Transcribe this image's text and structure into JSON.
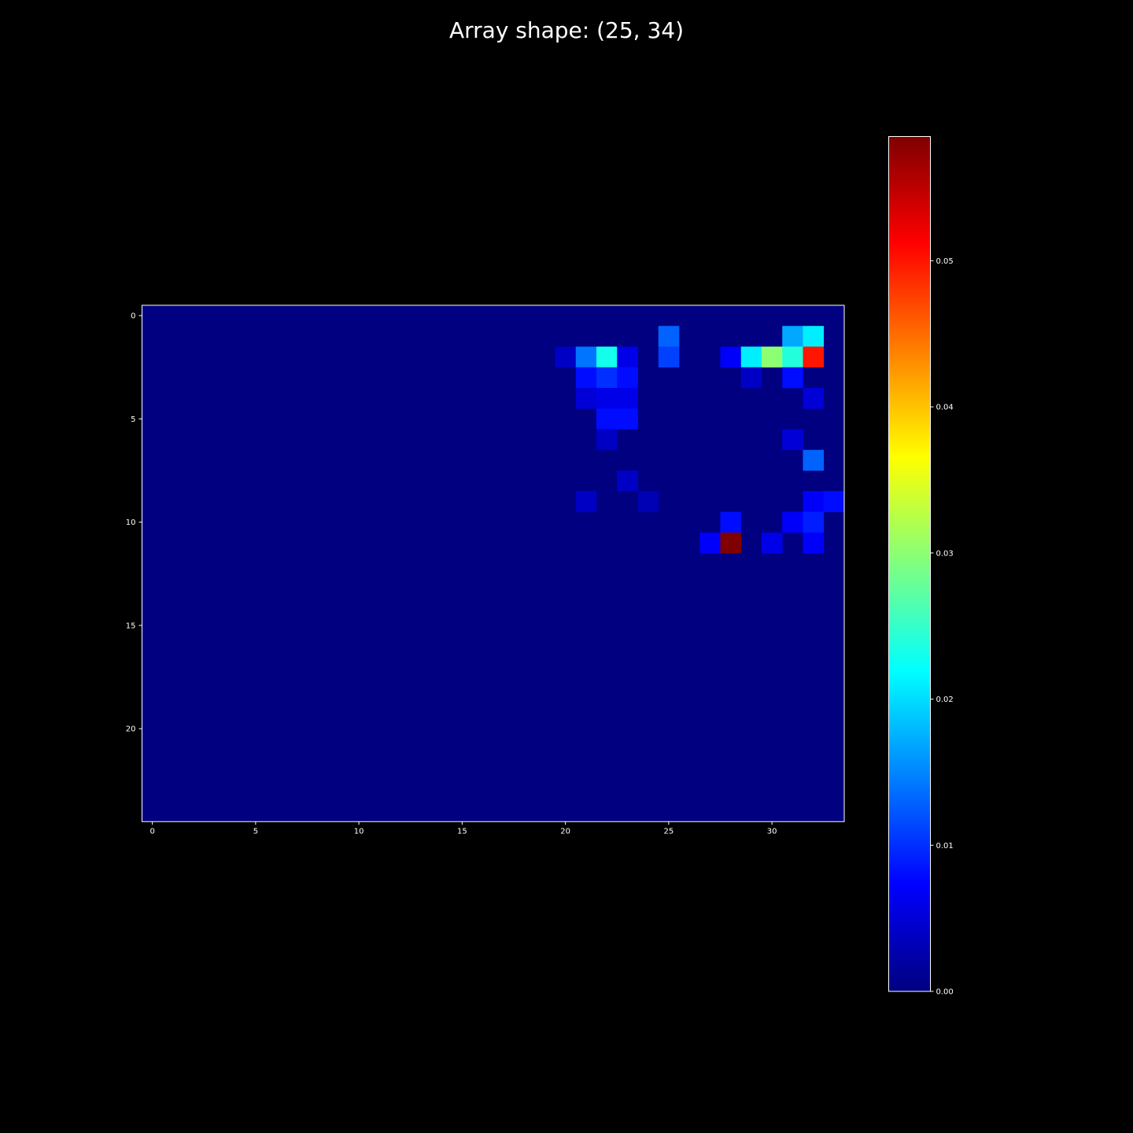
{
  "chart_data": {
    "type": "heatmap",
    "title": "Array shape: (25, 34)",
    "rows": 25,
    "cols": 34,
    "colormap": "jet",
    "vmin": 0,
    "vmax": 0.0585,
    "background": "#000000",
    "x_ticks": [
      0,
      5,
      10,
      15,
      20,
      25,
      30
    ],
    "y_ticks": [
      0,
      5,
      10,
      15,
      20
    ],
    "x_tick_labels": [
      "0",
      "5",
      "10",
      "15",
      "20",
      "25",
      "30"
    ],
    "y_tick_labels": [
      "0",
      "5",
      "10",
      "15",
      "20"
    ],
    "colorbar_ticks": [
      0.0,
      0.01,
      0.02,
      0.03,
      0.04,
      0.05
    ],
    "colorbar_tick_labels": [
      "0.00",
      "0.01",
      "0.02",
      "0.03",
      "0.04",
      "0.05"
    ],
    "nonzero_cells": [
      {
        "row": 1,
        "col": 25,
        "value": 0.013
      },
      {
        "row": 1,
        "col": 31,
        "value": 0.017
      },
      {
        "row": 1,
        "col": 32,
        "value": 0.021
      },
      {
        "row": 2,
        "col": 20,
        "value": 0.004
      },
      {
        "row": 2,
        "col": 21,
        "value": 0.014
      },
      {
        "row": 2,
        "col": 22,
        "value": 0.023
      },
      {
        "row": 2,
        "col": 23,
        "value": 0.006
      },
      {
        "row": 2,
        "col": 25,
        "value": 0.011
      },
      {
        "row": 2,
        "col": 28,
        "value": 0.007
      },
      {
        "row": 2,
        "col": 29,
        "value": 0.021
      },
      {
        "row": 2,
        "col": 30,
        "value": 0.03
      },
      {
        "row": 2,
        "col": 31,
        "value": 0.024
      },
      {
        "row": 2,
        "col": 32,
        "value": 0.05
      },
      {
        "row": 3,
        "col": 21,
        "value": 0.008
      },
      {
        "row": 3,
        "col": 22,
        "value": 0.01
      },
      {
        "row": 3,
        "col": 23,
        "value": 0.008
      },
      {
        "row": 3,
        "col": 29,
        "value": 0.004
      },
      {
        "row": 3,
        "col": 31,
        "value": 0.008
      },
      {
        "row": 4,
        "col": 21,
        "value": 0.005
      },
      {
        "row": 4,
        "col": 22,
        "value": 0.006
      },
      {
        "row": 4,
        "col": 23,
        "value": 0.006
      },
      {
        "row": 4,
        "col": 32,
        "value": 0.005
      },
      {
        "row": 5,
        "col": 22,
        "value": 0.008
      },
      {
        "row": 5,
        "col": 23,
        "value": 0.008
      },
      {
        "row": 6,
        "col": 22,
        "value": 0.004
      },
      {
        "row": 6,
        "col": 31,
        "value": 0.005
      },
      {
        "row": 7,
        "col": 32,
        "value": 0.013
      },
      {
        "row": 8,
        "col": 23,
        "value": 0.004
      },
      {
        "row": 9,
        "col": 21,
        "value": 0.004
      },
      {
        "row": 9,
        "col": 24,
        "value": 0.003
      },
      {
        "row": 9,
        "col": 32,
        "value": 0.007
      },
      {
        "row": 9,
        "col": 33,
        "value": 0.008
      },
      {
        "row": 10,
        "col": 28,
        "value": 0.008
      },
      {
        "row": 10,
        "col": 31,
        "value": 0.007
      },
      {
        "row": 10,
        "col": 32,
        "value": 0.009
      },
      {
        "row": 11,
        "col": 27,
        "value": 0.007
      },
      {
        "row": 11,
        "col": 28,
        "value": 0.0585
      },
      {
        "row": 11,
        "col": 30,
        "value": 0.006
      },
      {
        "row": 11,
        "col": 32,
        "value": 0.007
      }
    ]
  }
}
